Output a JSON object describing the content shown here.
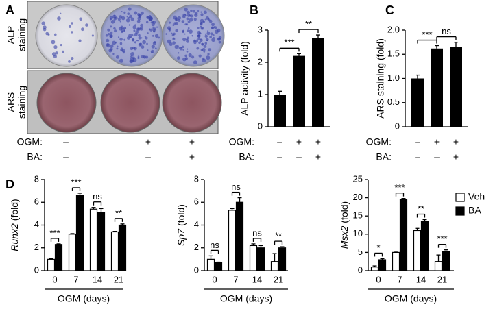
{
  "panel_a": {
    "panel_label": "A",
    "rows": [
      [
        "ALP",
        "staining"
      ],
      [
        "ARS",
        "staining"
      ]
    ],
    "conditions": [
      {
        "label": "OGM:",
        "signs": [
          "–",
          "+",
          "+"
        ]
      },
      {
        "label": "BA:",
        "signs": [
          "–",
          "–",
          "+"
        ]
      }
    ]
  },
  "chart_data": [
    {
      "type": "bar",
      "panel_label": "B",
      "ylabel": "ALP activity (fold)",
      "values": [
        1.0,
        2.2,
        2.75
      ],
      "errors": [
        0.1,
        0.07,
        0.1
      ],
      "color": "#000000",
      "ylim": [
        0,
        3
      ],
      "yticks": [
        0,
        1,
        2,
        3
      ],
      "significance": [
        "***",
        "**"
      ],
      "conditions": [
        {
          "label": "OGM:",
          "signs": [
            "–",
            "+",
            "+"
          ]
        },
        {
          "label": "BA:",
          "signs": [
            "–",
            "–",
            "+"
          ]
        }
      ]
    },
    {
      "type": "bar",
      "panel_label": "C",
      "ylabel": "ARS staining (fold)",
      "values": [
        1.0,
        1.62,
        1.65
      ],
      "errors": [
        0.07,
        0.06,
        0.1
      ],
      "color": "#000000",
      "ylim": [
        0,
        2
      ],
      "yticks": [
        0,
        0.5,
        {
          "value": 1,
          "label": "1.0"
        },
        1.5,
        {
          "value": 2,
          "label": "2.0"
        }
      ],
      "significance": [
        "***",
        "ns"
      ],
      "conditions": [
        {
          "label": "OGM:",
          "signs": [
            "–",
            "+",
            "+"
          ]
        },
        {
          "label": "BA:",
          "signs": [
            "–",
            "–",
            "+"
          ]
        }
      ]
    },
    {
      "type": "bar",
      "panel_label": "D",
      "ylabel_gene": "Runx2",
      "ylabel": "(fold)",
      "xlabel": "OGM (days)",
      "categories": [
        "0",
        "7",
        "14",
        "21"
      ],
      "ylim": [
        0,
        8
      ],
      "yticks": [
        0,
        2,
        4,
        6,
        8
      ],
      "series": [
        {
          "name": "Veh",
          "color": "#ffffff",
          "values": [
            1.0,
            3.2,
            5.4,
            3.4
          ],
          "errors": [
            0.05,
            0.05,
            0.15,
            0.05
          ]
        },
        {
          "name": "BA",
          "color": "#000000",
          "values": [
            2.3,
            6.6,
            5.1,
            4.0
          ],
          "errors": [
            0.05,
            0.2,
            0.35,
            0.1
          ]
        }
      ],
      "significance": [
        "***",
        "***",
        "ns",
        "**"
      ]
    },
    {
      "type": "bar",
      "ylabel_gene": "Sp7",
      "ylabel": "(fold)",
      "xlabel": "OGM (days)",
      "categories": [
        "0",
        "7",
        "14",
        "21"
      ],
      "ylim": [
        0,
        8
      ],
      "yticks": [
        0,
        2,
        4,
        6,
        8
      ],
      "series": [
        {
          "name": "Veh",
          "color": "#ffffff",
          "values": [
            1.0,
            5.3,
            2.2,
            0.8
          ],
          "errors": [
            0.3,
            0.15,
            0.15,
            0.7
          ]
        },
        {
          "name": "BA",
          "color": "#000000",
          "values": [
            0.7,
            6.0,
            2.0,
            2.0
          ],
          "errors": [
            0.05,
            0.4,
            0.2,
            0.1
          ]
        }
      ],
      "significance": [
        "ns",
        "ns",
        "ns",
        "**"
      ]
    },
    {
      "type": "bar",
      "ylabel_gene": "Msx2",
      "ylabel": "(fold)",
      "xlabel": "OGM (days)",
      "categories": [
        "0",
        "7",
        "14",
        "21"
      ],
      "ylim": [
        0,
        25
      ],
      "yticks": [
        0,
        5,
        10,
        15,
        20,
        25
      ],
      "series": [
        {
          "name": "Veh",
          "color": "#ffffff",
          "values": [
            1.0,
            5.0,
            11.0,
            2.5
          ],
          "errors": [
            0.3,
            0.3,
            0.6,
            1.8
          ]
        },
        {
          "name": "BA",
          "color": "#000000",
          "values": [
            3.0,
            19.5,
            13.5,
            5.3
          ],
          "errors": [
            0.3,
            0.3,
            0.5,
            0.4
          ]
        }
      ],
      "significance": [
        "*",
        "***",
        "**",
        "***"
      ],
      "legend": "right"
    }
  ]
}
